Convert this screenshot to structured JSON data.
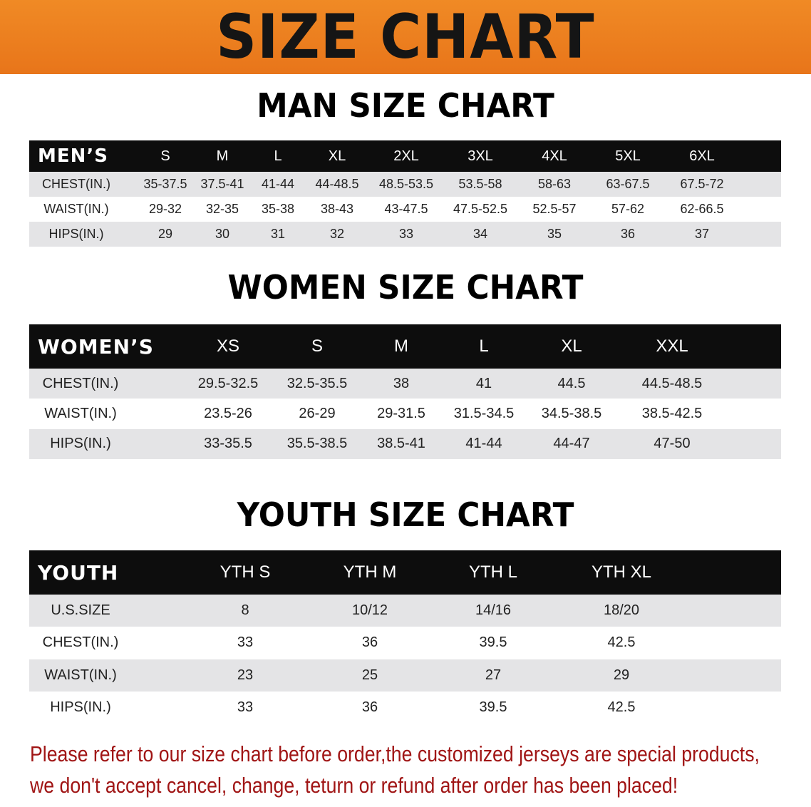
{
  "banner_title": "SIZE CHART",
  "men": {
    "title": "MAN SIZE CHART",
    "header_label": "MEN’S",
    "sizes": [
      "S",
      "M",
      "L",
      "XL",
      "2XL",
      "3XL",
      "4XL",
      "5XL",
      "6XL"
    ],
    "rows": [
      {
        "label": "CHEST(IN.)",
        "values": [
          "35-37.5",
          "37.5-41",
          "41-44",
          "44-48.5",
          "48.5-53.5",
          "53.5-58",
          "58-63",
          "63-67.5",
          "67.5-72"
        ]
      },
      {
        "label": "WAIST(IN.)",
        "values": [
          "29-32",
          "32-35",
          "35-38",
          "38-43",
          "43-47.5",
          "47.5-52.5",
          "52.5-57",
          "57-62",
          "62-66.5"
        ]
      },
      {
        "label": "HIPS(IN.)",
        "values": [
          "29",
          "30",
          "31",
          "32",
          "33",
          "34",
          "35",
          "36",
          "37"
        ]
      }
    ]
  },
  "women": {
    "title": "WOMEN SIZE CHART",
    "header_label": "WOMEN’S",
    "sizes": [
      "XS",
      "S",
      "M",
      "L",
      "XL",
      "XXL"
    ],
    "rows": [
      {
        "label": "CHEST(IN.)",
        "values": [
          "29.5-32.5",
          "32.5-35.5",
          "38",
          "41",
          "44.5",
          "44.5-48.5"
        ]
      },
      {
        "label": "WAIST(IN.)",
        "values": [
          "23.5-26",
          "26-29",
          "29-31.5",
          "31.5-34.5",
          "34.5-38.5",
          "38.5-42.5"
        ]
      },
      {
        "label": "HIPS(IN.)",
        "values": [
          "33-35.5",
          "35.5-38.5",
          "38.5-41",
          "41-44",
          "44-47",
          "47-50"
        ]
      }
    ]
  },
  "youth": {
    "title": "YOUTH SIZE CHART",
    "header_label": "YOUTH",
    "sizes": [
      "YTH S",
      "YTH M",
      "YTH L",
      "YTH XL"
    ],
    "rows": [
      {
        "label": "U.S.SIZE",
        "values": [
          "8",
          "10/12",
          "14/16",
          "18/20"
        ]
      },
      {
        "label": "CHEST(IN.)",
        "values": [
          "33",
          "36",
          "39.5",
          "42.5"
        ]
      },
      {
        "label": "WAIST(IN.)",
        "values": [
          "23",
          "25",
          "27",
          "29"
        ]
      },
      {
        "label": "HIPS(IN.)",
        "values": [
          "33",
          "36",
          "39.5",
          "42.5"
        ]
      }
    ]
  },
  "notice": [
    "Please refer to our size chart before order,the customized jerseys are special products,",
    "we don't accept cancel, change, teturn or refund after order has been placed!"
  ],
  "colors": {
    "banner": "#ec7d1f",
    "header": "#0d0d0d",
    "stripe": "#e4e4e6",
    "notice": "#a01515"
  }
}
